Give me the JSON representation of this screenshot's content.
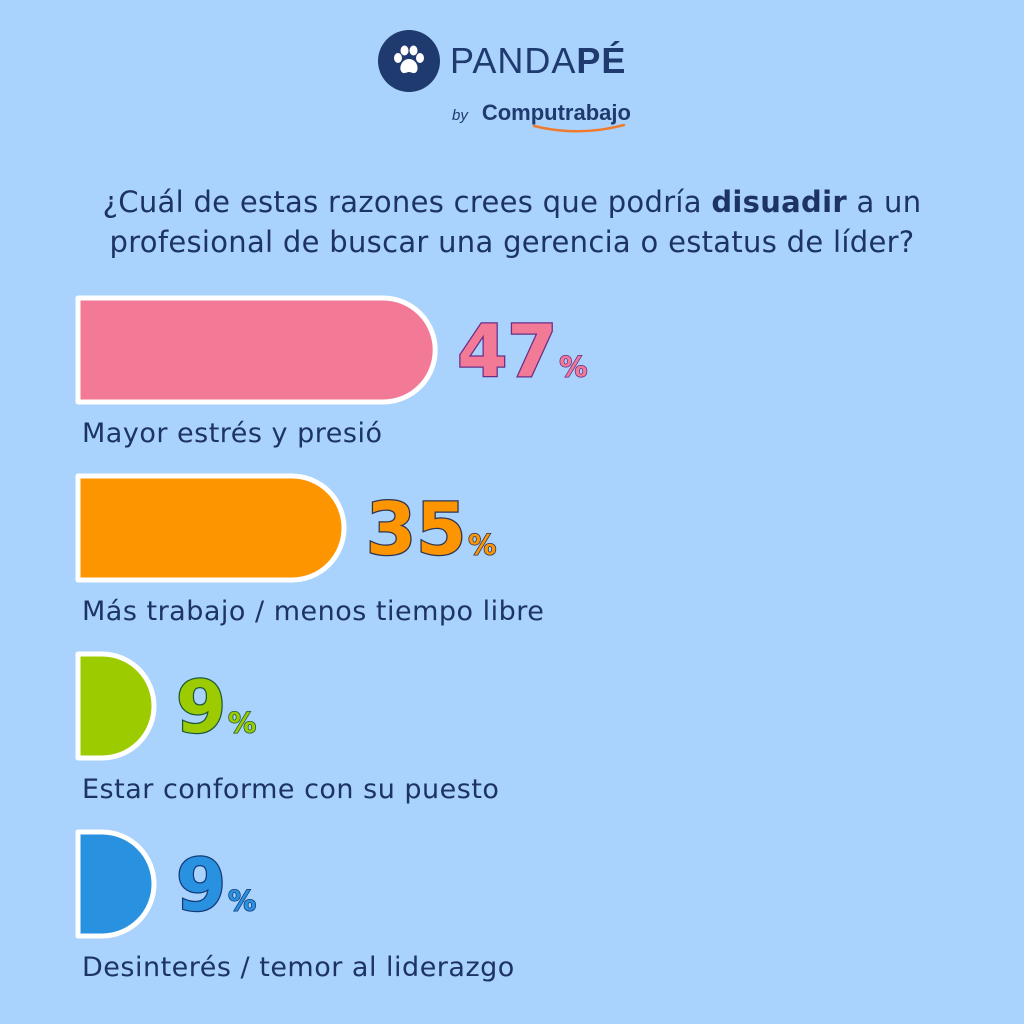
{
  "brand": {
    "name_light": "PANDA",
    "name_bold": "PÉ",
    "by": "by",
    "parent": "Computrabajo",
    "icon": "paw-icon",
    "color": "#1f3a6e",
    "swoosh_color": "#f07b2c"
  },
  "question": {
    "before": "¿Cuál de estas razones crees que podría ",
    "emphasis": "disuadir",
    "after": " a un profesional de buscar una gerencia o estatus de líder?"
  },
  "chart_data": {
    "type": "bar",
    "orientation": "horizontal",
    "categories": [
      "Mayor estrés y presió",
      "Más trabajo / menos tiempo libre",
      "Estar conforme con su puesto",
      "Desinterés / temor al liderazgo"
    ],
    "values": [
      47,
      35,
      9,
      9
    ],
    "value_labels": [
      "47",
      "35",
      "9",
      "9"
    ],
    "unit": "%",
    "colors": [
      "#f27a96",
      "#fd9500",
      "#9ccb00",
      "#2992e0"
    ],
    "value_stroke_colors": [
      "#6a2d86",
      "#2c3350",
      "#1d5a3a",
      "#143a7a"
    ],
    "bar_outline": "#ffffff",
    "grid": false,
    "legend": "none"
  }
}
